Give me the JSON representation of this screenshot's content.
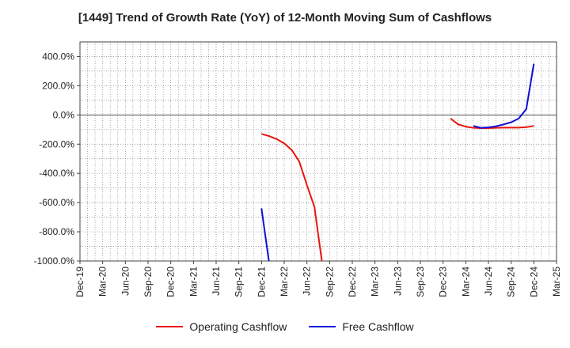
{
  "chart_data": {
    "type": "line",
    "title": "[1449]  Trend of Growth Rate (YoY) of 12-Month Moving Sum of Cashflows",
    "xlabel": "",
    "ylabel": "",
    "x_ticks": [
      "Dec-19",
      "Mar-20",
      "Jun-20",
      "Sep-20",
      "Dec-20",
      "Mar-21",
      "Jun-21",
      "Sep-21",
      "Dec-21",
      "Mar-22",
      "Jun-22",
      "Sep-22",
      "Dec-22",
      "Mar-23",
      "Jun-23",
      "Sep-23",
      "Dec-23",
      "Mar-24",
      "Jun-24",
      "Sep-24",
      "Dec-24",
      "Mar-25"
    ],
    "y_ticks": [
      "400.0%",
      "200.0%",
      "0.0%",
      "-200.0%",
      "-400.0%",
      "-600.0%",
      "-800.0%",
      "-1000.0%"
    ],
    "ylim": [
      -1000,
      500
    ],
    "grid": true,
    "legend_position": "bottom",
    "series": [
      {
        "name": "Operating Cashflow",
        "color": "#e8160c",
        "points": [
          [
            "Dec-21",
            -130
          ],
          [
            "Jan-22",
            -145
          ],
          [
            "Feb-22",
            -165
          ],
          [
            "Mar-22",
            -195
          ],
          [
            "Apr-22",
            -240
          ],
          [
            "May-22",
            -320
          ],
          [
            "Jun-22",
            -480
          ],
          [
            "Jul-22",
            -630
          ],
          [
            "Aug-22",
            -1010
          ],
          [
            "Jan-24",
            -25
          ],
          [
            "Feb-24",
            -65
          ],
          [
            "Mar-24",
            -80
          ],
          [
            "Apr-24",
            -88
          ],
          [
            "May-24",
            -90
          ],
          [
            "Jun-24",
            -90
          ],
          [
            "Jul-24",
            -88
          ],
          [
            "Aug-24",
            -87
          ],
          [
            "Sep-24",
            -87
          ],
          [
            "Oct-24",
            -87
          ],
          [
            "Nov-24",
            -84
          ],
          [
            "Dec-24",
            -75
          ]
        ]
      },
      {
        "name": "Free Cashflow",
        "color": "#0f0fd8",
        "points": [
          [
            "Dec-21",
            -640
          ],
          [
            "Jan-22",
            -1010
          ],
          [
            "Apr-24",
            -75
          ],
          [
            "May-24",
            -88
          ],
          [
            "Jun-24",
            -85
          ],
          [
            "Jul-24",
            -78
          ],
          [
            "Aug-24",
            -65
          ],
          [
            "Sep-24",
            -50
          ],
          [
            "Oct-24",
            -25
          ],
          [
            "Nov-24",
            40
          ],
          [
            "Dec-24",
            350
          ]
        ]
      }
    ]
  }
}
